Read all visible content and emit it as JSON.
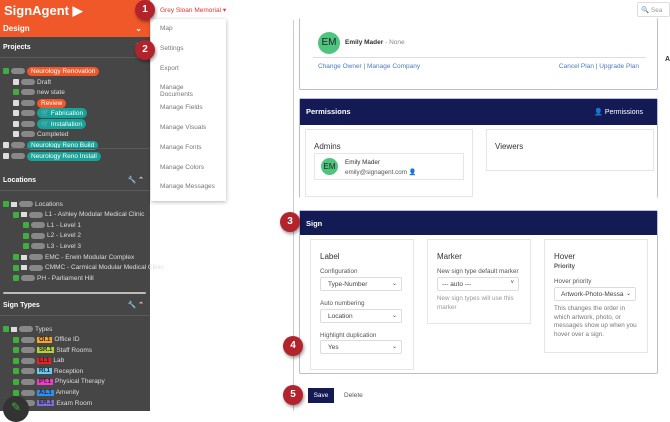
{
  "brand": {
    "name": "SignAgent",
    "color": "#f0582a"
  },
  "design_label": "Design",
  "org_selector": "Grey Sloan Memorial ▾",
  "menu": [
    "Map",
    "Settings",
    "Export",
    "Manage Documents",
    "Manage Fields",
    "Manage Visuals",
    "Manage Fonts",
    "Manage Colors",
    "Manage Messages"
  ],
  "projects": {
    "title": "Projects",
    "items": [
      {
        "label": "Neurology Renovation",
        "color": "#f0582a"
      },
      {
        "label": "Draft"
      },
      {
        "label": "new state"
      },
      {
        "label": "Review",
        "color": "#f0582a"
      },
      {
        "label": "🛒 Fabrication",
        "color": "#18a39a"
      },
      {
        "label": "🛒 Installation",
        "color": "#18a39a"
      },
      {
        "label": "Completed"
      },
      {
        "label": "Neurology Reno Build",
        "color": "#18a39a"
      },
      {
        "label": "Neurology Reno Install",
        "color": "#18a39a"
      }
    ]
  },
  "locations": {
    "title": "Locations",
    "items": [
      "Locations",
      "L1 - Ashley Modular Medical Clinic",
      "L1 - Level 1",
      "L2 - Level 2",
      "L3 - Level 3",
      "EMC - Erwin Modular Complex",
      "CMMC - Carmical Modular Medical Clinic",
      "PH - Parliament Hill"
    ]
  },
  "sign_types": {
    "title": "Sign Types",
    "root": "Types",
    "items": [
      {
        "code": "OI.1",
        "label": "Office ID",
        "color": "#f5a623"
      },
      {
        "code": "SR.1",
        "label": "Staff Rooms",
        "color": "#b5d334"
      },
      {
        "code": "LI.1",
        "label": "Lab",
        "color": "#e82020"
      },
      {
        "code": "RI.1",
        "label": "Reception",
        "color": "#6cc8f0"
      },
      {
        "code": "PT.1",
        "label": "Physical Therapy",
        "color": "#f03cc8"
      },
      {
        "code": "A1.1",
        "label": "Amenity",
        "color": "#2f8ef0"
      },
      {
        "code": "ER.1",
        "label": "Exam Room",
        "color": "#7a70d0"
      }
    ]
  },
  "owner": {
    "initials": "EM",
    "name": "Emily Mader",
    "plan": "- None",
    "links_left": "Change Owner | Manage Company",
    "links_right": "Cancel Plan | Upgrade Plan"
  },
  "permissions": {
    "title": "Permissions",
    "button": "Permissions",
    "admins_title": "Admins",
    "viewers_title": "Viewers",
    "admin": {
      "initials": "EM",
      "name": "Emily Mader",
      "email": "emily@signagent.com"
    }
  },
  "sign": {
    "title": "Sign",
    "label": {
      "title": "Label",
      "configuration_label": "Configuration",
      "configuration": "Type-Number",
      "auto_label": "Auto numbering",
      "auto": "Location",
      "highlight_label": "Highlight duplication",
      "highlight": "Yes"
    },
    "marker": {
      "title": "Marker",
      "default_label": "New sign type default marker",
      "default": "--- auto ---",
      "help": "New sign types will use this marker"
    },
    "hover": {
      "title": "Hover",
      "sub": "Priority",
      "priority_label": "Hover priority",
      "priority": "Artwork-Photo-Messa",
      "help": "This changes the order in which artwork, photo, or messages show up when you hover over a sign."
    }
  },
  "actions": {
    "save": "Save",
    "delete": "Delete"
  },
  "search_placeholder": "Sea",
  "right_edge": "A",
  "callouts": [
    "1",
    "2",
    "3",
    "4",
    "5"
  ]
}
